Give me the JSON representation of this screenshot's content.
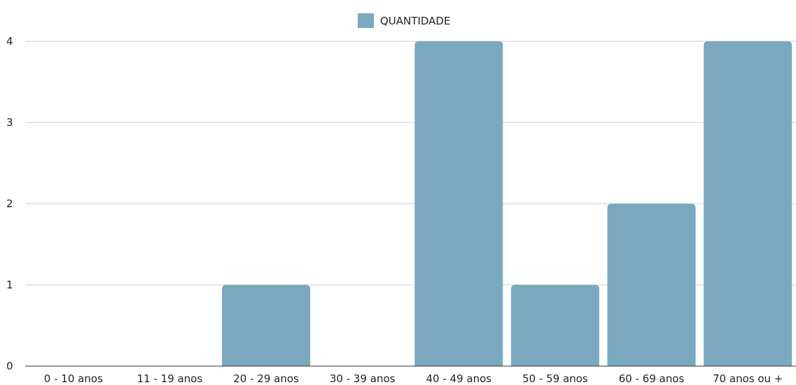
{
  "chart_data": {
    "type": "bar",
    "categories": [
      "0 - 10 anos",
      "11 - 19 anos",
      "20 - 29 anos",
      "30 - 39 anos",
      "40 - 49 anos",
      "50 - 59 anos",
      "60 - 69 anos",
      "70 anos ou +"
    ],
    "series": [
      {
        "name": "QUANTIDADE",
        "values": [
          0,
          0,
          1,
          0,
          4,
          1,
          2,
          4
        ],
        "color": "#7aa8bf"
      }
    ],
    "yticks": [
      0,
      1,
      2,
      3,
      4
    ],
    "ylim": [
      0,
      4
    ],
    "grid": true,
    "legend_position": "top-center",
    "title": "",
    "xlabel": "",
    "ylabel": ""
  },
  "colors": {
    "gridline": "#cccccc",
    "axis_line": "#333333",
    "text": "#222222"
  }
}
